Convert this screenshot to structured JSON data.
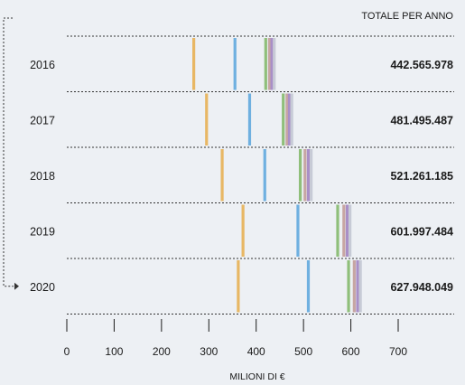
{
  "chart_data": {
    "type": "table",
    "header": "TOTALE PER ANNO",
    "xlabel": "MILIONI DI €",
    "xlim": [
      0,
      700
    ],
    "xticks": [
      "0",
      "100",
      "200",
      "300",
      "400",
      "500",
      "600",
      "700"
    ],
    "xtick_values": [
      0,
      100,
      200,
      300,
      400,
      500,
      600,
      700
    ],
    "rows": [
      {
        "year": "2016",
        "total": "442.565.978",
        "markers": [
          268,
          355,
          420,
          428,
          433,
          438
        ]
      },
      {
        "year": "2017",
        "total": "481.495.487",
        "markers": [
          295,
          386,
          457,
          465,
          470,
          475
        ]
      },
      {
        "year": "2018",
        "total": "521.261.185",
        "markers": [
          328,
          418,
          493,
          503,
          510,
          516
        ]
      },
      {
        "year": "2019",
        "total": "601.997.484",
        "markers": [
          372,
          488,
          572,
          585,
          592,
          598
        ]
      },
      {
        "year": "2020",
        "total": "627.948.049",
        "markers": [
          362,
          510,
          595,
          607,
          614,
          620
        ]
      }
    ],
    "marker_colors": [
      "#e8b764",
      "#6fb0e0",
      "#8fbf7a",
      "#c7a6a3",
      "#a98fc7",
      "#c7cbd6"
    ]
  }
}
